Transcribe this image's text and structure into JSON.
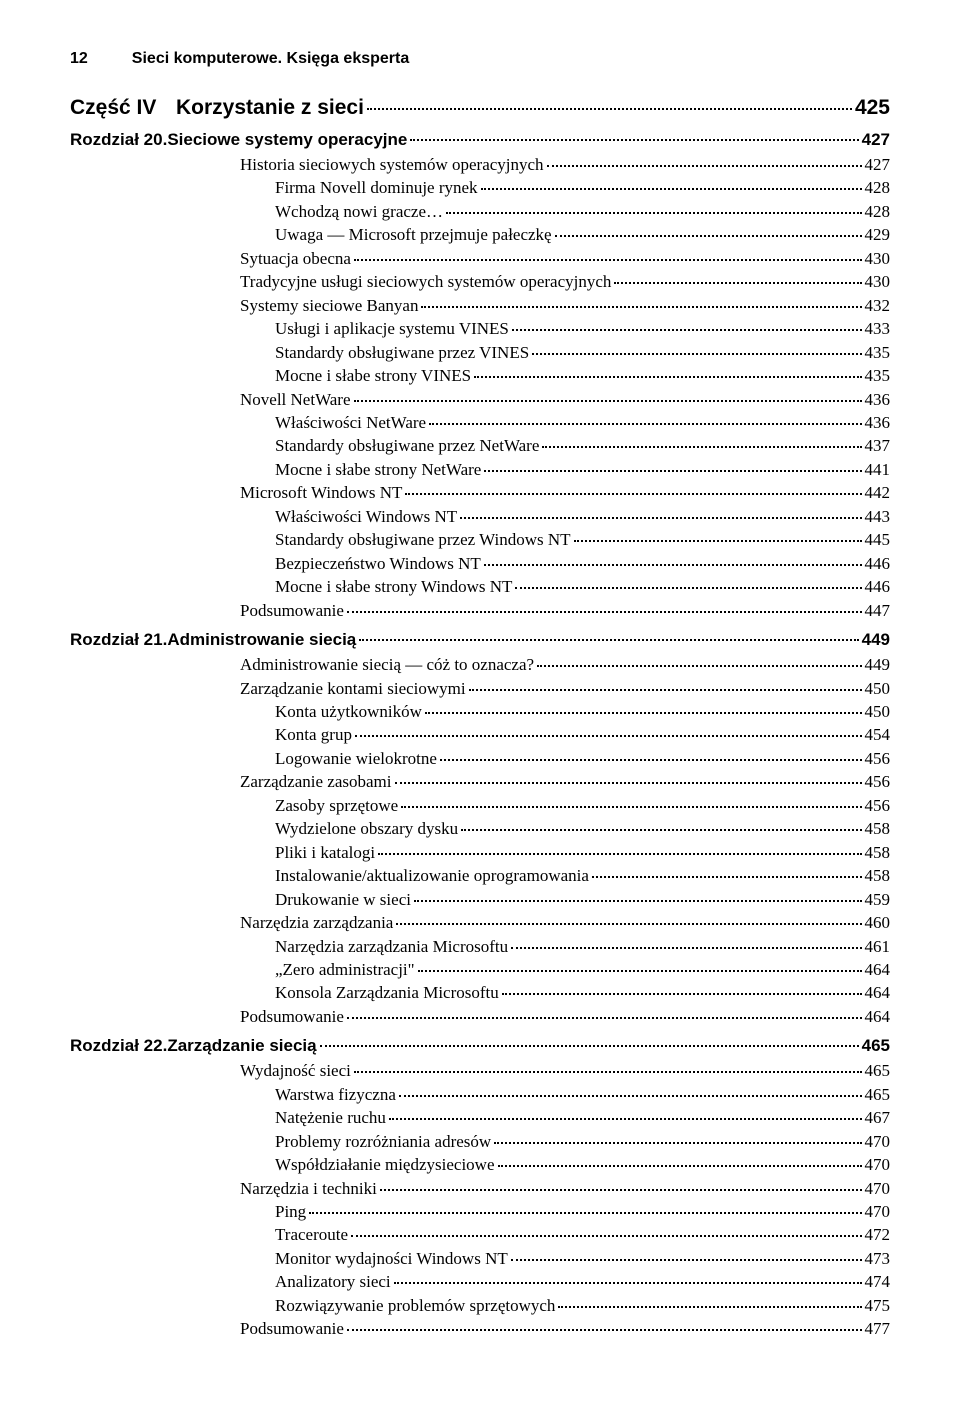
{
  "page_number": "12",
  "book_title": "Sieci komputerowe. Księga eksperta",
  "part": {
    "label": "Część IV",
    "title": "Korzystanie z sieci",
    "page": "425"
  },
  "chapters": [
    {
      "label": "Rozdział 20. ",
      "title": "Sieciowe systemy operacyjne",
      "page": "427",
      "entries": [
        {
          "level": 1,
          "text": "Historia sieciowych systemów operacyjnych",
          "page": "427"
        },
        {
          "level": 2,
          "text": "Firma Novell dominuje rynek",
          "page": "428"
        },
        {
          "level": 2,
          "text": "Wchodzą nowi gracze…",
          "page": "428"
        },
        {
          "level": 2,
          "text": "Uwaga — Microsoft przejmuje pałeczkę",
          "page": "429"
        },
        {
          "level": 1,
          "text": "Sytuacja obecna",
          "page": "430"
        },
        {
          "level": 1,
          "text": "Tradycyjne usługi sieciowych systemów operacyjnych",
          "page": "430"
        },
        {
          "level": 1,
          "text": "Systemy sieciowe Banyan",
          "page": "432"
        },
        {
          "level": 2,
          "text": "Usługi i aplikacje systemu VINES",
          "page": "433"
        },
        {
          "level": 2,
          "text": "Standardy obsługiwane przez VINES",
          "page": "435"
        },
        {
          "level": 2,
          "text": "Mocne i słabe strony VINES",
          "page": "435"
        },
        {
          "level": 1,
          "text": "Novell NetWare",
          "page": "436"
        },
        {
          "level": 2,
          "text": "Właściwości NetWare",
          "page": "436"
        },
        {
          "level": 2,
          "text": "Standardy obsługiwane przez NetWare",
          "page": "437"
        },
        {
          "level": 2,
          "text": "Mocne i słabe strony NetWare",
          "page": "441"
        },
        {
          "level": 1,
          "text": "Microsoft Windows NT",
          "page": "442"
        },
        {
          "level": 2,
          "text": "Właściwości Windows NT",
          "page": "443"
        },
        {
          "level": 2,
          "text": "Standardy obsługiwane przez Windows NT",
          "page": "445"
        },
        {
          "level": 2,
          "text": "Bezpieczeństwo Windows NT",
          "page": "446"
        },
        {
          "level": 2,
          "text": "Mocne i słabe strony Windows NT",
          "page": "446"
        },
        {
          "level": 1,
          "text": "Podsumowanie",
          "page": "447"
        }
      ]
    },
    {
      "label": "Rozdział 21. ",
      "title": "Administrowanie siecią",
      "page": "449",
      "entries": [
        {
          "level": 1,
          "text": "Administrowanie siecią — cóż to oznacza?",
          "page": "449"
        },
        {
          "level": 1,
          "text": "Zarządzanie kontami sieciowymi",
          "page": "450"
        },
        {
          "level": 2,
          "text": "Konta użytkowników",
          "page": "450"
        },
        {
          "level": 2,
          "text": "Konta grup",
          "page": "454"
        },
        {
          "level": 2,
          "text": "Logowanie wielokrotne",
          "page": "456"
        },
        {
          "level": 1,
          "text": "Zarządzanie zasobami",
          "page": "456"
        },
        {
          "level": 2,
          "text": "Zasoby sprzętowe",
          "page": "456"
        },
        {
          "level": 2,
          "text": "Wydzielone obszary dysku",
          "page": "458"
        },
        {
          "level": 2,
          "text": "Pliki i katalogi",
          "page": "458"
        },
        {
          "level": 2,
          "text": "Instalowanie/aktualizowanie oprogramowania",
          "page": "458"
        },
        {
          "level": 2,
          "text": "Drukowanie w sieci",
          "page": "459"
        },
        {
          "level": 1,
          "text": "Narzędzia zarządzania",
          "page": "460"
        },
        {
          "level": 2,
          "text": "Narzędzia zarządzania Microsoftu",
          "page": "461"
        },
        {
          "level": 2,
          "text": "„Zero administracji\"",
          "page": "464"
        },
        {
          "level": 2,
          "text": "Konsola Zarządzania Microsoftu",
          "page": "464"
        },
        {
          "level": 1,
          "text": "Podsumowanie",
          "page": "464"
        }
      ]
    },
    {
      "label": "Rozdział 22. ",
      "title": "Zarządzanie siecią",
      "page": "465",
      "entries": [
        {
          "level": 1,
          "text": "Wydajność sieci",
          "page": "465"
        },
        {
          "level": 2,
          "text": "Warstwa fizyczna",
          "page": "465"
        },
        {
          "level": 2,
          "text": "Natężenie ruchu",
          "page": "467"
        },
        {
          "level": 2,
          "text": "Problemy rozróżniania adresów",
          "page": "470"
        },
        {
          "level": 2,
          "text": "Współdziałanie międzysieciowe",
          "page": "470"
        },
        {
          "level": 1,
          "text": "Narzędzia i techniki",
          "page": "470"
        },
        {
          "level": 2,
          "text": "Ping",
          "page": "470"
        },
        {
          "level": 2,
          "text": "Traceroute",
          "page": "472"
        },
        {
          "level": 2,
          "text": "Monitor wydajności Windows NT",
          "page": "473"
        },
        {
          "level": 2,
          "text": "Analizatory sieci",
          "page": "474"
        },
        {
          "level": 2,
          "text": "Rozwiązywanie problemów sprzętowych",
          "page": "475"
        },
        {
          "level": 1,
          "text": "Podsumowanie",
          "page": "477"
        }
      ]
    }
  ]
}
